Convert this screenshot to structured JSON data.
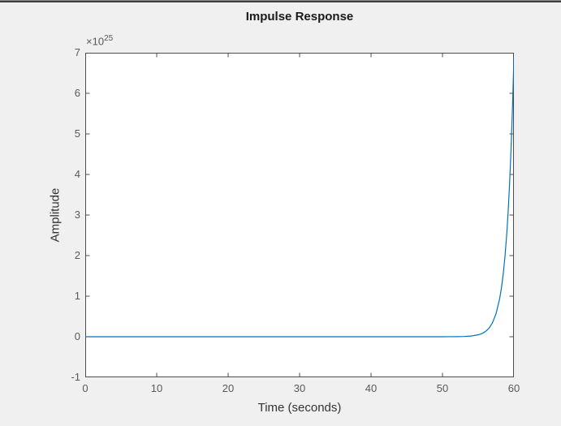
{
  "chart_data": {
    "type": "line",
    "title": "Impulse Response",
    "xlabel": "Time (seconds)",
    "ylabel": "Amplitude",
    "y_axis_multiplier": "×10",
    "y_axis_multiplier_exponent": "25",
    "xlim": [
      0,
      60
    ],
    "ylim": [
      -1e+25,
      7e+25
    ],
    "x_ticks": [
      0,
      10,
      20,
      30,
      40,
      50,
      60
    ],
    "y_ticks": [
      -1,
      0,
      1,
      2,
      3,
      4,
      5,
      6,
      7
    ],
    "y_tick_unit": 1e+25,
    "grid": false,
    "box": true,
    "tick_direction": "in",
    "line_color": "#0072BD",
    "series": [
      {
        "name": "impulse-response",
        "t_seconds": [
          0,
          5,
          10,
          15,
          20,
          25,
          30,
          35,
          40,
          45,
          50,
          51,
          52,
          53,
          54,
          55,
          55.5,
          56,
          56.5,
          57,
          57.5,
          58,
          58.25,
          58.5,
          58.75,
          59,
          59.2,
          59.4,
          59.6,
          59.8,
          59.9,
          60
        ],
        "amplitude_x1e25": [
          0,
          0,
          0,
          0,
          0,
          0,
          0,
          0,
          0,
          0,
          0.0003,
          0.0009,
          0.0023,
          0.0063,
          0.017,
          0.047,
          0.076,
          0.126,
          0.207,
          0.344,
          0.568,
          0.934,
          1.2,
          1.54,
          1.98,
          2.54,
          3.1,
          3.79,
          4.62,
          5.65,
          6.24,
          6.9
        ]
      }
    ]
  },
  "colors": {
    "figure_background": "#F0F0F0",
    "plot_background": "#FFFFFF",
    "axis": "#4D4D4D",
    "tick_label": "#595959",
    "axis_label": "#333333",
    "title": "#1A1A1A",
    "line": "#0072BD"
  }
}
